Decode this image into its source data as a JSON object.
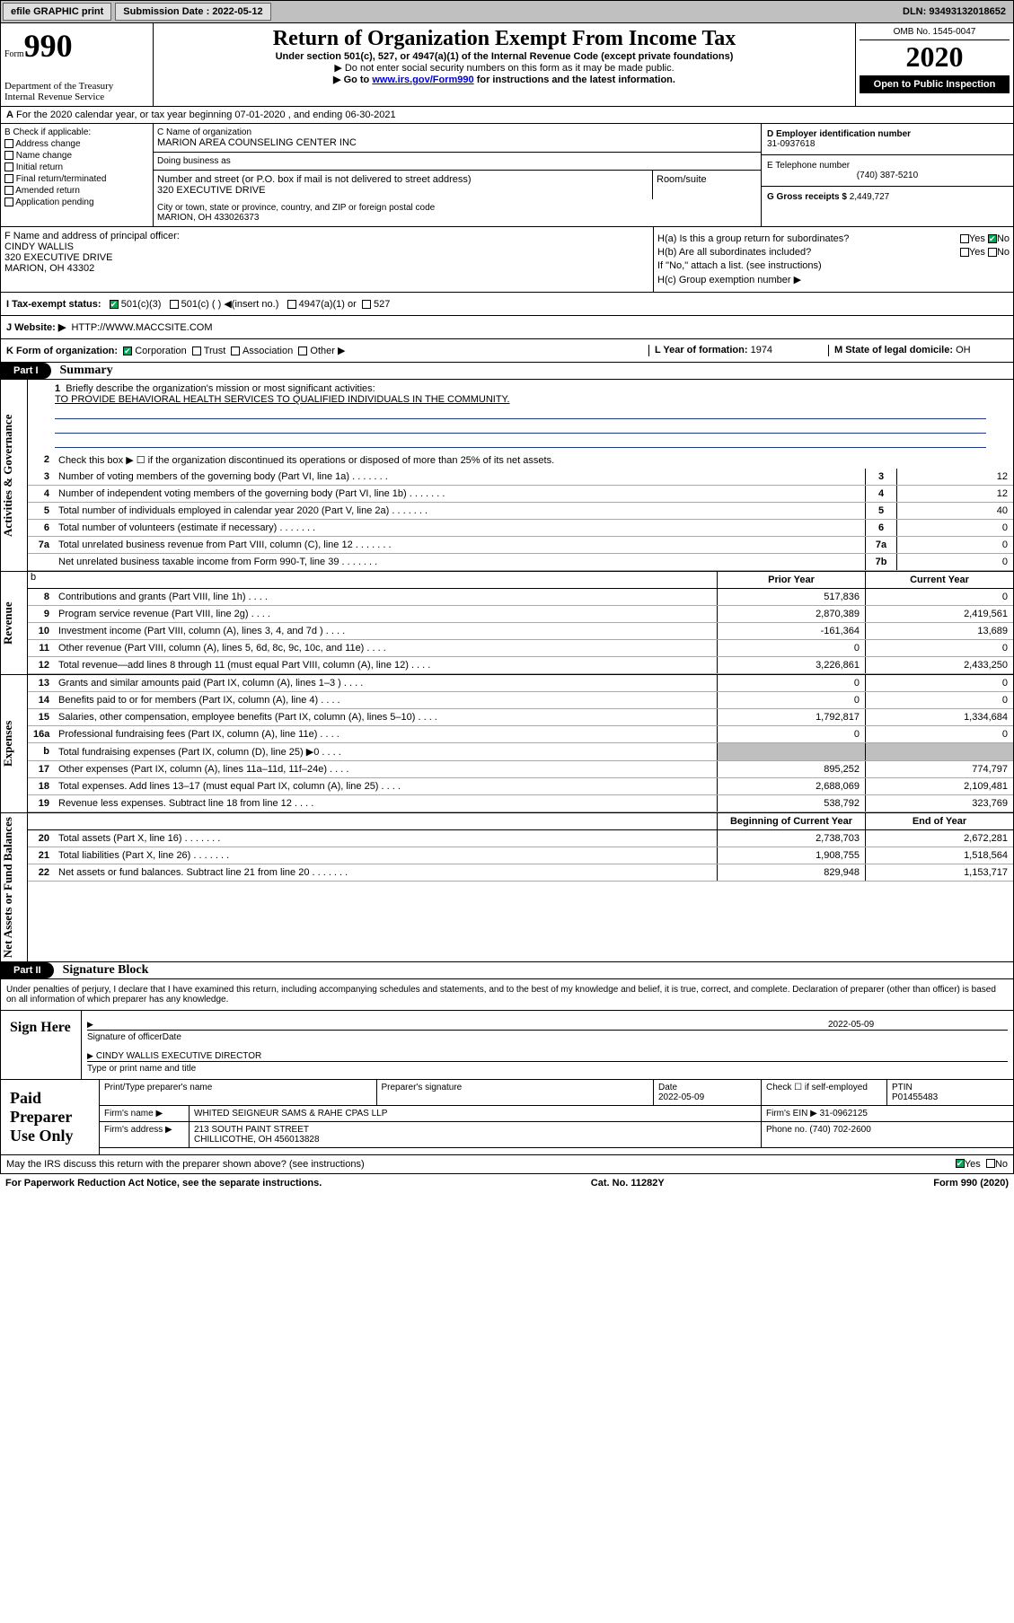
{
  "topbar": {
    "efile": "efile GRAPHIC print",
    "sub_lbl": "Submission Date : 2022-05-12",
    "dln": "DLN: 93493132018652"
  },
  "header": {
    "form_small": "Form",
    "form_no": "990",
    "dept": "Department of the Treasury\nInternal Revenue Service",
    "title": "Return of Organization Exempt From Income Tax",
    "sub1": "Under section 501(c), 527, or 4947(a)(1) of the Internal Revenue Code (except private foundations)",
    "sub2": "▶ Do not enter social security numbers on this form as it may be made public.",
    "sub3_pre": "▶ Go to ",
    "sub3_link": "www.irs.gov/Form990",
    "sub3_post": " for instructions and the latest information.",
    "omb": "OMB No. 1545-0047",
    "year": "2020",
    "opi": "Open to Public Inspection"
  },
  "meta": {
    "calendar": "For the 2020 calendar year, or tax year beginning 07-01-2020 , and ending 06-30-2021",
    "a": "A"
  },
  "boxB": {
    "hdr": "B Check if applicable:",
    "items": [
      "Address change",
      "Name change",
      "Initial return",
      "Final return/terminated",
      "Amended return",
      "Application pending"
    ],
    "c_lbl": "C Name of organization",
    "c_val": "MARION AREA COUNSELING CENTER INC",
    "dba_lbl": "Doing business as",
    "addr_lbl": "Number and street (or P.O. box if mail is not delivered to street address)",
    "addr_val": "320 EXECUTIVE DRIVE",
    "room_lbl": "Room/suite",
    "city_lbl": "City or town, state or province, country, and ZIP or foreign postal code",
    "city_val": "MARION, OH  433026373",
    "d_lbl": "D Employer identification number",
    "d_val": "31-0937618",
    "e_lbl": "E Telephone number",
    "e_val": "(740) 387-5210",
    "g_lbl": "G Gross receipts $",
    "g_val": "2,449,727"
  },
  "boxFH": {
    "f_lbl": "F Name and address of principal officer:",
    "f_name": "CINDY WALLIS",
    "f_addr1": "320 EXECUTIVE DRIVE",
    "f_addr2": "MARION, OH  43302",
    "ha": "H(a) Is this a group return for subordinates?",
    "hb": "H(b) Are all subordinates included?",
    "hb_note": "If \"No,\" attach a list. (see instructions)",
    "hc": "H(c) Group exemption number ▶",
    "yes": "Yes",
    "no": "No"
  },
  "rowI": {
    "lbl": "I Tax-exempt status:",
    "o1": "501(c)(3)",
    "o2": "501(c) (  ) ◀(insert no.)",
    "o3": "4947(a)(1) or",
    "o4": "527"
  },
  "rowJ": {
    "lbl": "J Website: ▶",
    "val": "HTTP://WWW.MACCSITE.COM"
  },
  "rowK": {
    "lbl": "K Form of organization:",
    "o1": "Corporation",
    "o2": "Trust",
    "o3": "Association",
    "o4": "Other ▶",
    "l_lbl": "L Year of formation:",
    "l_val": "1974",
    "m_lbl": "M State of legal domicile:",
    "m_val": "OH"
  },
  "part1": {
    "pill": "Part I",
    "title": "Summary"
  },
  "gov": {
    "side": "Activities & Governance",
    "q1": "Briefly describe the organization's mission or most significant activities:",
    "q1_val": "TO PROVIDE BEHAVIORAL HEALTH SERVICES TO QUALIFIED INDIVIDUALS IN THE COMMUNITY.",
    "q2": "Check this box ▶ ☐ if the organization discontinued its operations or disposed of more than 25% of its net assets.",
    "rows": [
      {
        "n": "3",
        "t": "Number of voting members of the governing body (Part VI, line 1a)",
        "b": "3",
        "v": "12"
      },
      {
        "n": "4",
        "t": "Number of independent voting members of the governing body (Part VI, line 1b)",
        "b": "4",
        "v": "12"
      },
      {
        "n": "5",
        "t": "Total number of individuals employed in calendar year 2020 (Part V, line 2a)",
        "b": "5",
        "v": "40"
      },
      {
        "n": "6",
        "t": "Total number of volunteers (estimate if necessary)",
        "b": "6",
        "v": "0"
      },
      {
        "n": "7a",
        "t": "Total unrelated business revenue from Part VIII, column (C), line 12",
        "b": "7a",
        "v": "0"
      },
      {
        "n": "",
        "t": "Net unrelated business taxable income from Form 990-T, line 39",
        "b": "7b",
        "v": "0"
      }
    ]
  },
  "rev": {
    "side": "Revenue",
    "col1": "Prior Year",
    "col2": "Current Year",
    "rows": [
      {
        "n": "8",
        "t": "Contributions and grants (Part VIII, line 1h)",
        "p": "517,836",
        "c": "0"
      },
      {
        "n": "9",
        "t": "Program service revenue (Part VIII, line 2g)",
        "p": "2,870,389",
        "c": "2,419,561"
      },
      {
        "n": "10",
        "t": "Investment income (Part VIII, column (A), lines 3, 4, and 7d )",
        "p": "-161,364",
        "c": "13,689"
      },
      {
        "n": "11",
        "t": "Other revenue (Part VIII, column (A), lines 5, 6d, 8c, 9c, 10c, and 11e)",
        "p": "0",
        "c": "0"
      },
      {
        "n": "12",
        "t": "Total revenue—add lines 8 through 11 (must equal Part VIII, column (A), line 12)",
        "p": "3,226,861",
        "c": "2,433,250"
      }
    ]
  },
  "exp": {
    "side": "Expenses",
    "rows": [
      {
        "n": "13",
        "t": "Grants and similar amounts paid (Part IX, column (A), lines 1–3 )",
        "p": "0",
        "c": "0"
      },
      {
        "n": "14",
        "t": "Benefits paid to or for members (Part IX, column (A), line 4)",
        "p": "0",
        "c": "0"
      },
      {
        "n": "15",
        "t": "Salaries, other compensation, employee benefits (Part IX, column (A), lines 5–10)",
        "p": "1,792,817",
        "c": "1,334,684"
      },
      {
        "n": "16a",
        "t": "Professional fundraising fees (Part IX, column (A), line 11e)",
        "p": "0",
        "c": "0"
      },
      {
        "n": "b",
        "t": "Total fundraising expenses (Part IX, column (D), line 25) ▶0",
        "p": "grey",
        "c": "grey"
      },
      {
        "n": "17",
        "t": "Other expenses (Part IX, column (A), lines 11a–11d, 11f–24e)",
        "p": "895,252",
        "c": "774,797"
      },
      {
        "n": "18",
        "t": "Total expenses. Add lines 13–17 (must equal Part IX, column (A), line 25)",
        "p": "2,688,069",
        "c": "2,109,481"
      },
      {
        "n": "19",
        "t": "Revenue less expenses. Subtract line 18 from line 12",
        "p": "538,792",
        "c": "323,769"
      }
    ]
  },
  "net": {
    "side": "Net Assets or Fund Balances",
    "col1": "Beginning of Current Year",
    "col2": "End of Year",
    "rows": [
      {
        "n": "20",
        "t": "Total assets (Part X, line 16)",
        "p": "2,738,703",
        "c": "2,672,281"
      },
      {
        "n": "21",
        "t": "Total liabilities (Part X, line 26)",
        "p": "1,908,755",
        "c": "1,518,564"
      },
      {
        "n": "22",
        "t": "Net assets or fund balances. Subtract line 21 from line 20",
        "p": "829,948",
        "c": "1,153,717"
      }
    ]
  },
  "part2": {
    "pill": "Part II",
    "title": "Signature Block"
  },
  "sig": {
    "decl": "Under penalties of perjury, I declare that I have examined this return, including accompanying schedules and statements, and to the best of my knowledge and belief, it is true, correct, and complete. Declaration of preparer (other than officer) is based on all information of which preparer has any knowledge.",
    "here": "Sign Here",
    "so_lbl": "Signature of officer",
    "date_lbl": "Date",
    "date_val": "2022-05-09",
    "name": "CINDY WALLIS  EXECUTIVE DIRECTOR",
    "name_lbl": "Type or print name and title"
  },
  "paid": {
    "l": "Paid Preparer Use Only",
    "h1": "Print/Type preparer's name",
    "h2": "Preparer's signature",
    "h3_a": "Date",
    "h3_b": "2022-05-09",
    "h4": "Check ☐ if self-employed",
    "h5_a": "PTIN",
    "h5_b": "P01455483",
    "firm_lbl": "Firm's name    ▶",
    "firm_val": "WHITED SEIGNEUR SAMS & RAHE CPAS LLP",
    "ein_lbl": "Firm's EIN ▶",
    "ein_val": "31-0962125",
    "addr_lbl": "Firm's address ▶",
    "addr_val1": "213 SOUTH PAINT STREET",
    "addr_val2": "CHILLICOTHE, OH  456013828",
    "phone_lbl": "Phone no.",
    "phone_val": "(740) 702-2600"
  },
  "foot": {
    "discuss": "May the IRS discuss this return with the preparer shown above? (see instructions)",
    "yes": "Yes",
    "no": "No",
    "pra": "For Paperwork Reduction Act Notice, see the separate instructions.",
    "cat": "Cat. No. 11282Y",
    "form": "Form 990 (2020)"
  }
}
